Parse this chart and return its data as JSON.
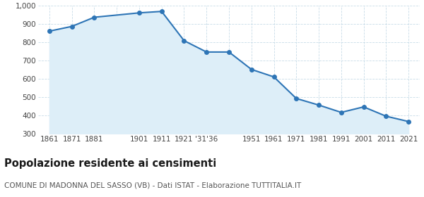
{
  "x_positions": [
    0,
    1,
    2,
    3,
    4,
    5,
    6,
    7,
    8,
    9,
    10,
    11,
    12,
    13,
    14,
    15,
    16
  ],
  "values": [
    862,
    888,
    938,
    null,
    962,
    970,
    810,
    748,
    748,
    653,
    612,
    494,
    458,
    418,
    448,
    397,
    368
  ],
  "tick_labels": [
    "1861",
    "1871",
    "1881",
    "",
    "1901",
    "1911",
    "1921",
    "'31'36",
    "",
    "1951",
    "1961",
    "1971",
    "1981",
    "1991",
    "2001",
    "2011",
    "2021"
  ],
  "line_color": "#2e75b6",
  "fill_color": "#ddeef8",
  "marker_color": "#2e75b6",
  "bg_color": "#ffffff",
  "grid_color": "#c8dce8",
  "ylim": [
    300,
    1000
  ],
  "ytick_values": [
    300,
    400,
    500,
    600,
    700,
    800,
    900,
    1000
  ],
  "title": "Popolazione residente ai censimenti",
  "subtitle": "COMUNE DI MADONNA DEL SASSO (VB) - Dati ISTAT - Elaborazione TUTTITALIA.IT",
  "title_fontsize": 10.5,
  "subtitle_fontsize": 7.5
}
